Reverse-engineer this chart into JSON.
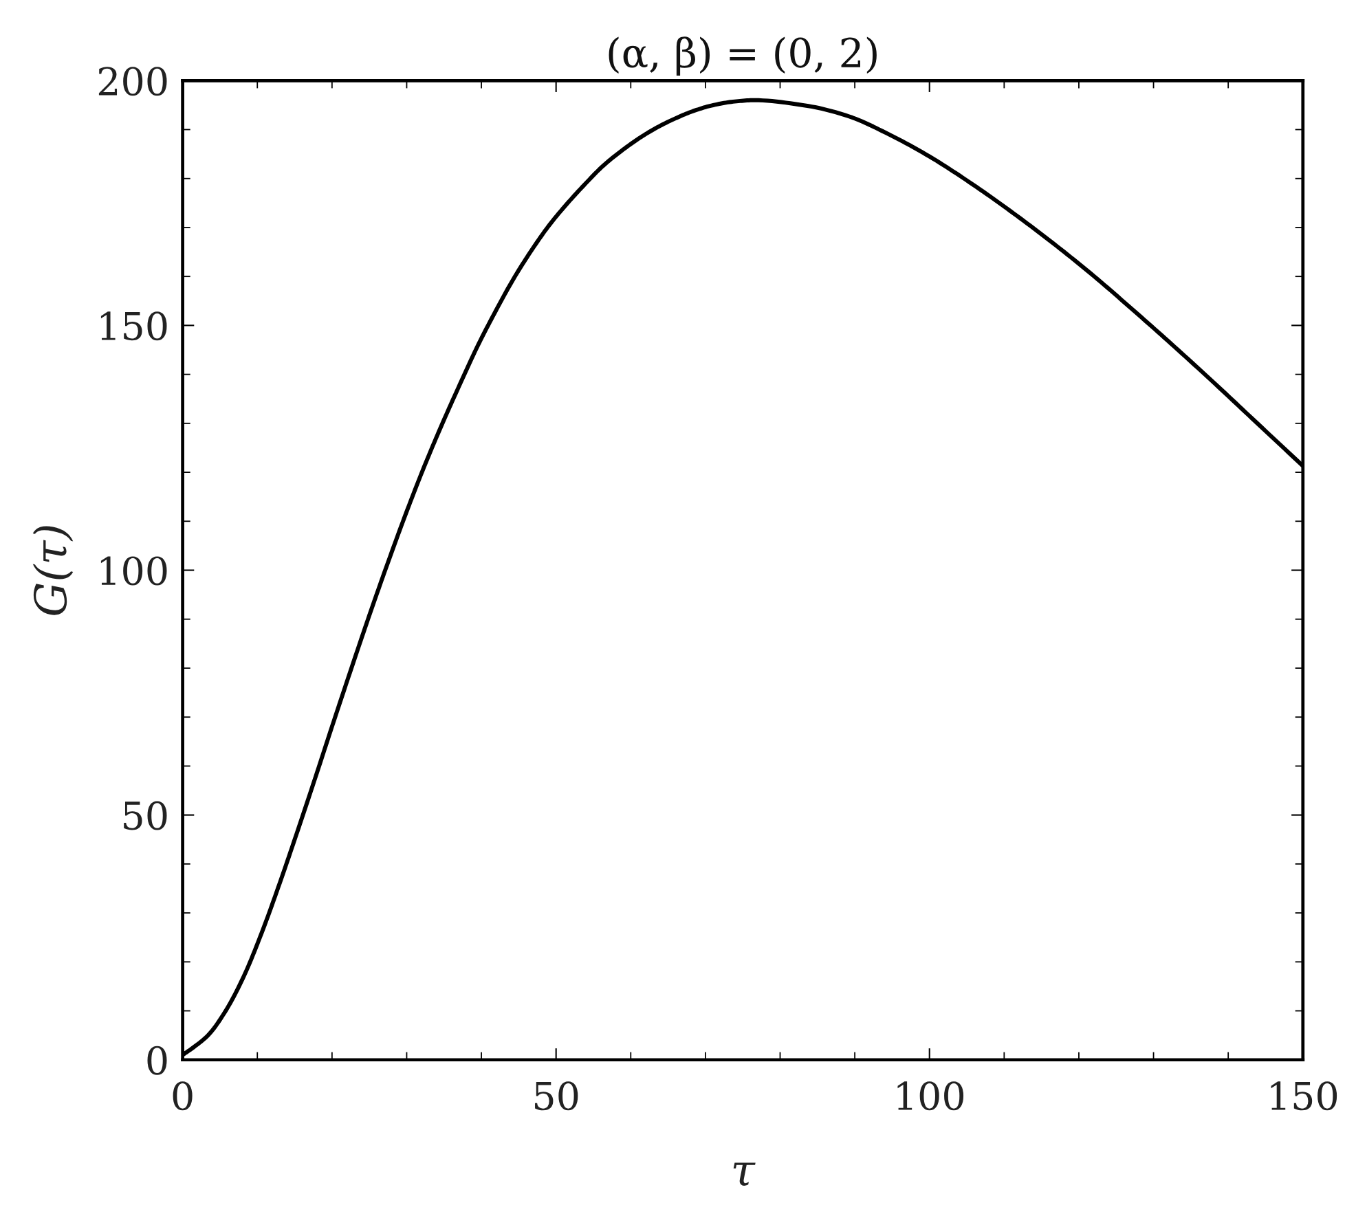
{
  "chart_data": {
    "type": "line",
    "title": "(α, β) = (0, 2)",
    "xlabel": "τ",
    "ylabel": "G(τ)",
    "series": [
      {
        "color": "#000000",
        "line_style": "solid",
        "marker": "none",
        "x": [
          0,
          1.5,
          3.4,
          5.8,
          8.2,
          10.6,
          13.0,
          15.4,
          17.8,
          20.2,
          22.6,
          25.0,
          27.4,
          29.9,
          32.3,
          34.7,
          37.1,
          39.5,
          41.9,
          44.3,
          46.7,
          49.1,
          51.5,
          53.9,
          56.3,
          58.8,
          61.2,
          63.6,
          66.0,
          68.4,
          70.8,
          73.7,
          76.5,
          83.8,
          89.2,
          94.6,
          100.0,
          105.4,
          110.8,
          116.2,
          121.6,
          127.0,
          132.4,
          137.8,
          143.2,
          150
        ],
        "values": [
          1.0,
          2.6,
          5.0,
          10.1,
          17.1,
          26.0,
          36.1,
          46.8,
          57.8,
          69.0,
          80.0,
          90.8,
          101.2,
          111.6,
          121.0,
          129.7,
          137.9,
          145.8,
          152.9,
          159.5,
          165.3,
          170.5,
          174.9,
          178.9,
          182.6,
          185.7,
          188.3,
          190.5,
          192.3,
          193.8,
          194.9,
          195.7,
          196.0,
          194.8,
          192.7,
          189.0,
          184.5,
          179.2,
          173.4,
          167.2,
          160.6,
          153.5,
          146.2,
          138.7,
          131.0,
          121.3
        ]
      }
    ],
    "xlim": [
      0,
      150
    ],
    "xticks": [
      0,
      {
        "value": 10,
        "label": null
      },
      {
        "value": 20,
        "label": null
      },
      {
        "value": 30,
        "label": null
      },
      {
        "value": 40,
        "label": null
      },
      50,
      {
        "value": 60,
        "label": null
      },
      {
        "value": 70,
        "label": null
      },
      {
        "value": 80,
        "label": null
      },
      {
        "value": 90,
        "label": null
      },
      100,
      {
        "value": 110,
        "label": null
      },
      {
        "value": 120,
        "label": null
      },
      {
        "value": 130,
        "label": null
      },
      {
        "value": 140,
        "label": null
      },
      150
    ],
    "ylim": [
      0,
      200
    ],
    "yticks": [
      0,
      {
        "value": 10,
        "label": null
      },
      {
        "value": 20,
        "label": null
      },
      {
        "value": 30,
        "label": null
      },
      {
        "value": 40,
        "label": null
      },
      50,
      {
        "value": 60,
        "label": null
      },
      {
        "value": 70,
        "label": null
      },
      {
        "value": 80,
        "label": null
      },
      {
        "value": 90,
        "label": null
      },
      100,
      {
        "value": 110,
        "label": null
      },
      {
        "value": 120,
        "label": null
      },
      {
        "value": 130,
        "label": null
      },
      {
        "value": 140,
        "label": null
      },
      150,
      {
        "value": 160,
        "label": null
      },
      {
        "value": 170,
        "label": null
      },
      {
        "value": 180,
        "label": null
      },
      {
        "value": 190,
        "label": null
      },
      200
    ],
    "grid": false
  }
}
